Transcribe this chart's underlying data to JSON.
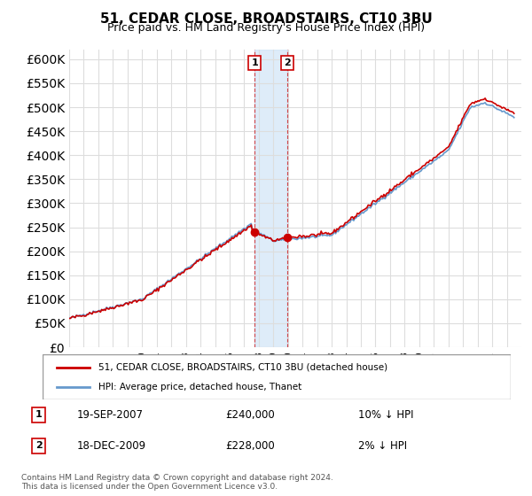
{
  "title": "51, CEDAR CLOSE, BROADSTAIRS, CT10 3BU",
  "subtitle": "Price paid vs. HM Land Registry's House Price Index (HPI)",
  "ylabel": "",
  "ylim": [
    0,
    620000
  ],
  "yticks": [
    0,
    50000,
    100000,
    150000,
    200000,
    250000,
    300000,
    350000,
    400000,
    450000,
    500000,
    550000,
    600000
  ],
  "bg_color": "#ffffff",
  "plot_bg_color": "#ffffff",
  "grid_color": "#dddddd",
  "sale1_date": 2007.72,
  "sale1_price": 240000,
  "sale2_date": 2009.96,
  "sale2_price": 228000,
  "sale1_label": "1",
  "sale2_label": "2",
  "hpi_color": "#6699cc",
  "price_color": "#cc0000",
  "shade_color": "#d0e4f7",
  "legend_label1": "51, CEDAR CLOSE, BROADSTAIRS, CT10 3BU (detached house)",
  "legend_label2": "HPI: Average price, detached house, Thanet",
  "table_row1": [
    "1",
    "19-SEP-2007",
    "£240,000",
    "10% ↓ HPI"
  ],
  "table_row2": [
    "2",
    "18-DEC-2009",
    "£228,000",
    "2% ↓ HPI"
  ],
  "footnote": "Contains HM Land Registry data © Crown copyright and database right 2024.\nThis data is licensed under the Open Government Licence v3.0.",
  "xmin": 1995,
  "xmax": 2026
}
